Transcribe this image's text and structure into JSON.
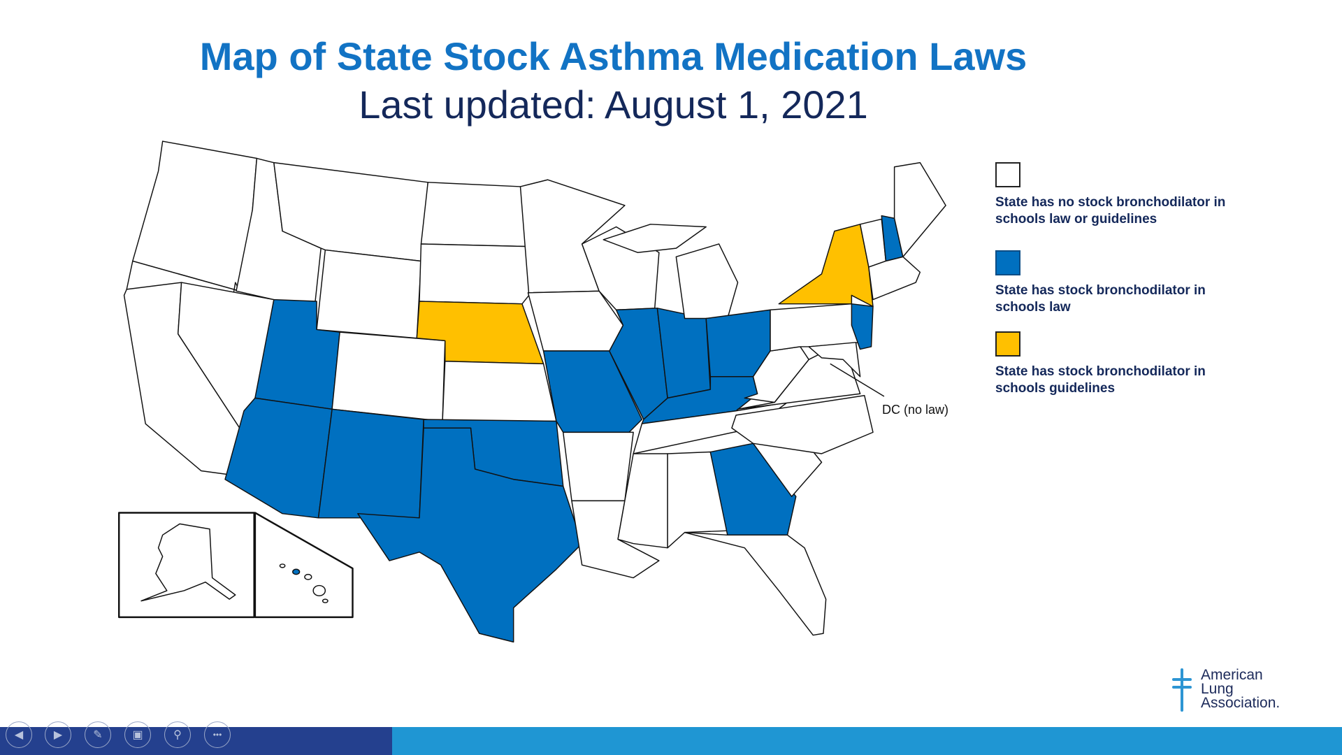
{
  "title": "Map of State Stock Asthma Medication Laws",
  "subtitle": "Last updated: August 1, 2021",
  "colors": {
    "no_law": "#ffffff",
    "law": "#0070c0",
    "guidelines": "#ffc000",
    "title": "#1273c4"
  },
  "legend": [
    {
      "label": "State has no stock bronchodilator in schools law or guidelines",
      "color": "#ffffff"
    },
    {
      "label": "State has stock bronchodilator in schools law",
      "color": "#0070c0"
    },
    {
      "label": "State has stock bronchodilator in schools guidelines",
      "color": "#ffc000"
    }
  ],
  "dc_label": "DC (no law)",
  "states": {
    "law": [
      "UT",
      "AZ",
      "NM",
      "TX",
      "OK",
      "MO",
      "IL",
      "IN",
      "OH",
      "KY",
      "GA",
      "NH",
      "NJ"
    ],
    "guidelines": [
      "NE",
      "NY"
    ]
  },
  "logo": {
    "line1": "American",
    "line2": "Lung",
    "line3": "Association."
  },
  "toolbar": [
    {
      "name": "previous-slide",
      "icon": "◀"
    },
    {
      "name": "next-slide",
      "icon": "▶"
    },
    {
      "name": "pen-tool",
      "icon": "✎"
    },
    {
      "name": "see-all-slides",
      "icon": "▣"
    },
    {
      "name": "zoom",
      "icon": "⚲"
    },
    {
      "name": "more-options",
      "icon": "•••"
    }
  ]
}
